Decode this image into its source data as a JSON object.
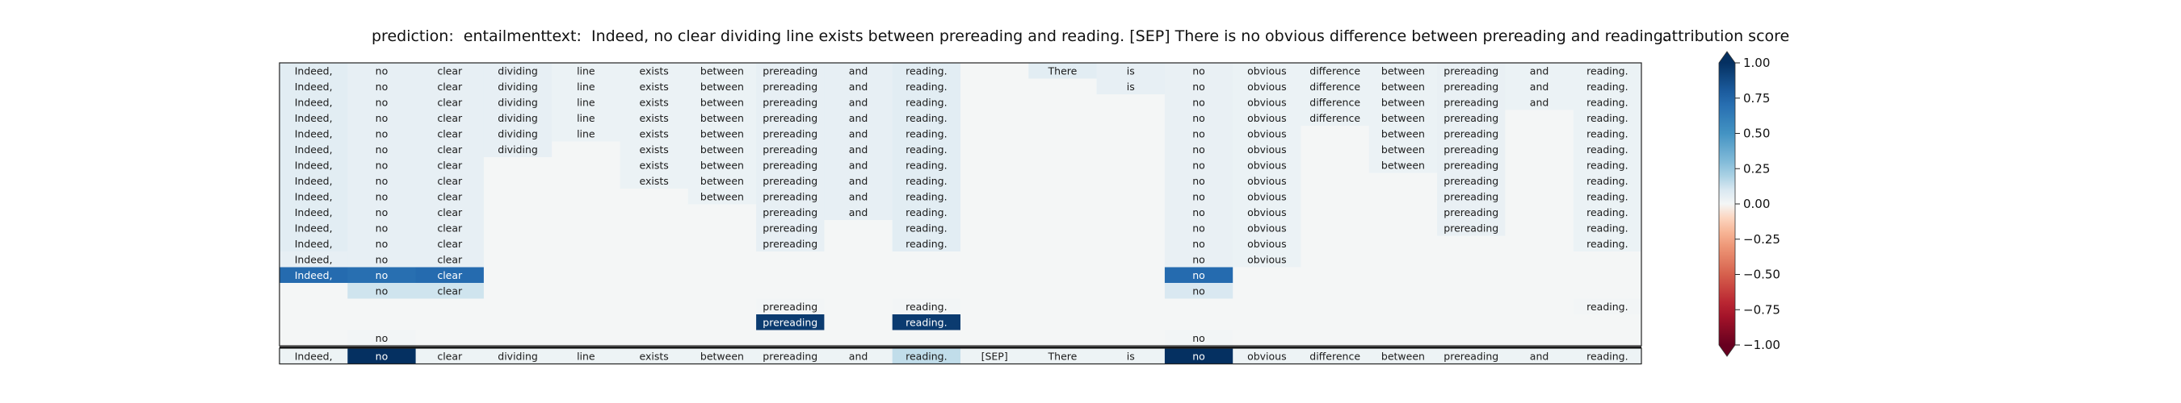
{
  "chart_data": {
    "type": "heatmap",
    "title_prediction": "prediction:  entailment",
    "title_text": "text:  Indeed, no clear dividing line exists between prereading and reading. [SEP] There is no obvious difference between prereading and reading.",
    "columns": [
      "Indeed,",
      "no",
      "clear",
      "dividing",
      "line",
      "exists",
      "between",
      "prereading",
      "and",
      "reading.",
      "[SEP]",
      "There",
      "is",
      "no",
      "obvious",
      "difference",
      "between",
      "prereading",
      "and",
      "reading."
    ],
    "grid": [
      [
        0.08,
        0.06,
        0.06,
        0.06,
        0.04,
        0.04,
        0.04,
        0.06,
        0.06,
        0.08,
        0,
        0.08,
        0.06,
        0.05,
        0.04,
        0.04,
        0.04,
        0.05,
        0.04,
        0.04
      ],
      [
        0.08,
        0.06,
        0.06,
        0.06,
        0.04,
        0.04,
        0.04,
        0.06,
        0.06,
        0.08,
        0,
        0,
        0.06,
        0.05,
        0.04,
        0.04,
        0.04,
        0.05,
        0.04,
        0.04
      ],
      [
        0.08,
        0.06,
        0.06,
        0.06,
        0.04,
        0.04,
        0.04,
        0.06,
        0.06,
        0.08,
        0,
        0,
        0,
        0.05,
        0.04,
        0.04,
        0.04,
        0.05,
        0.04,
        0.04
      ],
      [
        0.08,
        0.06,
        0.06,
        0.06,
        0.04,
        0.04,
        0.04,
        0.06,
        0.06,
        0.08,
        0,
        0,
        0,
        0.05,
        0.04,
        0.04,
        0.04,
        0.05,
        0,
        0.04
      ],
      [
        0.08,
        0.06,
        0.06,
        0.06,
        0.04,
        0.04,
        0.04,
        0.06,
        0.06,
        0.08,
        0,
        0,
        0,
        0.05,
        0.04,
        0,
        0.04,
        0.05,
        0,
        0.04
      ],
      [
        0.08,
        0.06,
        0.06,
        0.06,
        0,
        0.04,
        0.04,
        0.06,
        0.06,
        0.08,
        0,
        0,
        0,
        0.05,
        0.04,
        0,
        0.04,
        0.05,
        0,
        0.04
      ],
      [
        0.08,
        0.06,
        0.06,
        0,
        0,
        0.04,
        0.04,
        0.06,
        0.06,
        0.08,
        0,
        0,
        0,
        0.05,
        0.04,
        0,
        0.04,
        0.05,
        0,
        0.04
      ],
      [
        0.08,
        0.06,
        0.06,
        0,
        0,
        0.04,
        0.04,
        0.06,
        0.06,
        0.08,
        0,
        0,
        0,
        0.05,
        0.04,
        0,
        0,
        0.05,
        0,
        0.04
      ],
      [
        0.08,
        0.06,
        0.06,
        0,
        0,
        0,
        0.04,
        0.06,
        0.06,
        0.08,
        0,
        0,
        0,
        0.05,
        0.04,
        0,
        0,
        0.05,
        0,
        0.04
      ],
      [
        0.08,
        0.06,
        0.06,
        0,
        0,
        0,
        0,
        0.06,
        0.06,
        0.08,
        0,
        0,
        0,
        0.05,
        0.04,
        0,
        0,
        0.05,
        0,
        0.04
      ],
      [
        0.08,
        0.06,
        0.06,
        0,
        0,
        0,
        0,
        0.06,
        0,
        0.08,
        0,
        0,
        0,
        0.05,
        0.04,
        0,
        0,
        0.05,
        0,
        0.04
      ],
      [
        0.08,
        0.06,
        0.06,
        0,
        0,
        0,
        0,
        0.06,
        0,
        0.08,
        0,
        0,
        0,
        0.05,
        0.04,
        0,
        0,
        0,
        0,
        0.04
      ],
      [
        0.06,
        0.06,
        0.06,
        0,
        0,
        0,
        0,
        0,
        0,
        0,
        0,
        0,
        0,
        0.05,
        0.04,
        0,
        0,
        0,
        0,
        0
      ],
      [
        0.72,
        0.7,
        0.72,
        0,
        0,
        0,
        0,
        0,
        0,
        0,
        0,
        0,
        0,
        0.72,
        0,
        0,
        0,
        0,
        0,
        0
      ],
      [
        0,
        0.12,
        0.12,
        0,
        0,
        0,
        0,
        0,
        0,
        0,
        0,
        0,
        0,
        0.1,
        0,
        0,
        0,
        0,
        0,
        0
      ],
      [
        0,
        0,
        0,
        0,
        0,
        0,
        0,
        0.01,
        0,
        0.01,
        0,
        0,
        0,
        0,
        0,
        0,
        0,
        0,
        0,
        0.01
      ],
      [
        0,
        0,
        0,
        0,
        0,
        0,
        0,
        0.95,
        0,
        0.95,
        0,
        0,
        0,
        0,
        0,
        0,
        0,
        0,
        0,
        0
      ],
      [
        0,
        0.01,
        0,
        0,
        0,
        0,
        0,
        0,
        0,
        0,
        0,
        0,
        0,
        0.01,
        0,
        0,
        0,
        0,
        0,
        0
      ]
    ],
    "labels": [
      [
        1,
        1,
        1,
        1,
        1,
        1,
        1,
        1,
        1,
        1,
        0,
        1,
        1,
        1,
        1,
        1,
        1,
        1,
        1,
        1
      ],
      [
        1,
        1,
        1,
        1,
        1,
        1,
        1,
        1,
        1,
        1,
        0,
        0,
        1,
        1,
        1,
        1,
        1,
        1,
        1,
        1
      ],
      [
        1,
        1,
        1,
        1,
        1,
        1,
        1,
        1,
        1,
        1,
        0,
        0,
        0,
        1,
        1,
        1,
        1,
        1,
        1,
        1
      ],
      [
        1,
        1,
        1,
        1,
        1,
        1,
        1,
        1,
        1,
        1,
        0,
        0,
        0,
        1,
        1,
        1,
        1,
        1,
        0,
        1
      ],
      [
        1,
        1,
        1,
        1,
        1,
        1,
        1,
        1,
        1,
        1,
        0,
        0,
        0,
        1,
        1,
        0,
        1,
        1,
        0,
        1
      ],
      [
        1,
        1,
        1,
        1,
        0,
        1,
        1,
        1,
        1,
        1,
        0,
        0,
        0,
        1,
        1,
        0,
        1,
        1,
        0,
        1
      ],
      [
        1,
        1,
        1,
        0,
        0,
        1,
        1,
        1,
        1,
        1,
        0,
        0,
        0,
        1,
        1,
        0,
        1,
        1,
        0,
        1
      ],
      [
        1,
        1,
        1,
        0,
        0,
        1,
        1,
        1,
        1,
        1,
        0,
        0,
        0,
        1,
        1,
        0,
        0,
        1,
        0,
        1
      ],
      [
        1,
        1,
        1,
        0,
        0,
        0,
        1,
        1,
        1,
        1,
        0,
        0,
        0,
        1,
        1,
        0,
        0,
        1,
        0,
        1
      ],
      [
        1,
        1,
        1,
        0,
        0,
        0,
        0,
        1,
        1,
        1,
        0,
        0,
        0,
        1,
        1,
        0,
        0,
        1,
        0,
        1
      ],
      [
        1,
        1,
        1,
        0,
        0,
        0,
        0,
        1,
        0,
        1,
        0,
        0,
        0,
        1,
        1,
        0,
        0,
        1,
        0,
        1
      ],
      [
        1,
        1,
        1,
        0,
        0,
        0,
        0,
        1,
        0,
        1,
        0,
        0,
        0,
        1,
        1,
        0,
        0,
        0,
        0,
        1
      ],
      [
        1,
        1,
        1,
        0,
        0,
        0,
        0,
        0,
        0,
        0,
        0,
        0,
        0,
        1,
        1,
        0,
        0,
        0,
        0,
        0
      ],
      [
        1,
        1,
        1,
        0,
        0,
        0,
        0,
        0,
        0,
        0,
        0,
        0,
        0,
        1,
        0,
        0,
        0,
        0,
        0,
        0
      ],
      [
        0,
        1,
        1,
        0,
        0,
        0,
        0,
        0,
        0,
        0,
        0,
        0,
        0,
        1,
        0,
        0,
        0,
        0,
        0,
        0
      ],
      [
        0,
        0,
        0,
        0,
        0,
        0,
        0,
        1,
        0,
        1,
        0,
        0,
        0,
        0,
        0,
        0,
        0,
        0,
        0,
        1
      ],
      [
        0,
        0,
        0,
        0,
        0,
        0,
        0,
        1,
        0,
        1,
        0,
        0,
        0,
        0,
        0,
        0,
        0,
        0,
        0,
        0
      ],
      [
        0,
        1,
        0,
        0,
        0,
        0,
        0,
        0,
        0,
        0,
        0,
        0,
        0,
        1,
        0,
        0,
        0,
        0,
        0,
        0
      ]
    ],
    "bottom_row": [
      0.03,
      1.0,
      0.03,
      0.03,
      0.03,
      0.03,
      0.03,
      0.03,
      0.03,
      0.15,
      0.03,
      0.03,
      0.03,
      1.0,
      0.03,
      0.03,
      0.03,
      0.03,
      0.03,
      0.03
    ],
    "colorbar": {
      "title": "attribution score",
      "range": [
        -1.0,
        1.0
      ],
      "ticks": [
        "1.00",
        "0.75",
        "0.50",
        "0.25",
        "0.00",
        "−0.25",
        "−0.50",
        "−0.75",
        "−1.00"
      ],
      "tick_values": [
        1.0,
        0.75,
        0.5,
        0.25,
        0.0,
        -0.25,
        -0.5,
        -0.75,
        -1.0
      ],
      "colormap": "RdBu"
    }
  }
}
